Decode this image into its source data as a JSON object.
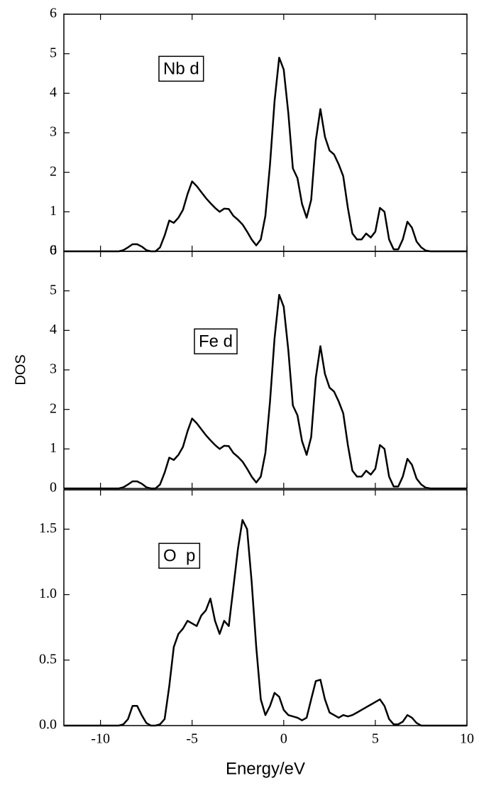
{
  "chart_data": [
    {
      "type": "line",
      "annotation": "Nb d",
      "xlim": [
        -12,
        10
      ],
      "ylim": [
        0,
        6
      ],
      "yticks": [
        0,
        1,
        2,
        3,
        4,
        5,
        6
      ],
      "series": [
        {
          "name": "Nb d",
          "color": "#000000",
          "x": [
            -12,
            -9,
            -8.75,
            -8.5,
            -8.25,
            -8,
            -7.75,
            -7.5,
            -7.25,
            -7,
            -6.75,
            -6.5,
            -6.25,
            -6,
            -5.75,
            -5.5,
            -5.25,
            -5,
            -4.75,
            -4.5,
            -4.25,
            -4,
            -3.75,
            -3.5,
            -3.25,
            -3,
            -2.75,
            -2.5,
            -2.25,
            -2,
            -1.75,
            -1.5,
            -1.25,
            -1,
            -0.75,
            -0.5,
            -0.25,
            0,
            0.25,
            0.5,
            0.75,
            1,
            1.25,
            1.5,
            1.75,
            2,
            2.25,
            2.5,
            2.75,
            3,
            3.25,
            3.5,
            3.75,
            4,
            4.25,
            4.5,
            4.75,
            5,
            5.25,
            5.5,
            5.75,
            6,
            6.25,
            6.5,
            6.75,
            7,
            7.25,
            7.5,
            7.75,
            8,
            10
          ],
          "values": [
            0,
            0,
            0.03,
            0.1,
            0.18,
            0.18,
            0.12,
            0.03,
            0,
            0,
            0.1,
            0.4,
            0.78,
            0.72,
            0.85,
            1.05,
            1.45,
            1.77,
            1.65,
            1.5,
            1.35,
            1.22,
            1.1,
            1.0,
            1.08,
            1.07,
            0.9,
            0.8,
            0.68,
            0.5,
            0.3,
            0.15,
            0.3,
            0.9,
            2.2,
            3.8,
            4.9,
            4.6,
            3.5,
            2.1,
            1.85,
            1.2,
            0.85,
            1.3,
            2.8,
            3.6,
            2.9,
            2.55,
            2.45,
            2.2,
            1.9,
            1.1,
            0.45,
            0.3,
            0.3,
            0.45,
            0.35,
            0.5,
            1.1,
            1.0,
            0.3,
            0.05,
            0.05,
            0.3,
            0.75,
            0.6,
            0.25,
            0.1,
            0.02,
            0,
            0
          ]
        }
      ]
    },
    {
      "type": "line",
      "annotation": "Fe d",
      "ylabel": "DOS",
      "xlim": [
        -12,
        10
      ],
      "ylim": [
        0,
        6
      ],
      "yticks": [
        0,
        1,
        2,
        3,
        4,
        5,
        6
      ],
      "series": [
        {
          "name": "Fe d",
          "color": "#000000",
          "x": [
            -12,
            -9,
            -8.75,
            -8.5,
            -8.25,
            -8,
            -7.75,
            -7.5,
            -7.25,
            -7,
            -6.75,
            -6.5,
            -6.25,
            -6,
            -5.75,
            -5.5,
            -5.25,
            -5,
            -4.75,
            -4.5,
            -4.25,
            -4,
            -3.75,
            -3.5,
            -3.25,
            -3,
            -2.75,
            -2.5,
            -2.25,
            -2,
            -1.75,
            -1.5,
            -1.25,
            -1,
            -0.75,
            -0.5,
            -0.25,
            0,
            0.25,
            0.5,
            0.75,
            1,
            1.25,
            1.5,
            1.75,
            2,
            2.25,
            2.5,
            2.75,
            3,
            3.25,
            3.5,
            3.75,
            4,
            4.25,
            4.5,
            4.75,
            5,
            5.25,
            5.5,
            5.75,
            6,
            6.25,
            6.5,
            6.75,
            7,
            7.25,
            7.5,
            7.75,
            8,
            10
          ],
          "values": [
            0,
            0,
            0.03,
            0.1,
            0.18,
            0.18,
            0.12,
            0.03,
            0,
            0,
            0.1,
            0.4,
            0.78,
            0.72,
            0.85,
            1.05,
            1.45,
            1.77,
            1.65,
            1.5,
            1.35,
            1.22,
            1.1,
            1.0,
            1.08,
            1.07,
            0.9,
            0.8,
            0.68,
            0.5,
            0.3,
            0.15,
            0.3,
            0.9,
            2.2,
            3.8,
            4.9,
            4.6,
            3.5,
            2.1,
            1.85,
            1.2,
            0.85,
            1.3,
            2.8,
            3.6,
            2.9,
            2.55,
            2.45,
            2.2,
            1.9,
            1.1,
            0.45,
            0.3,
            0.3,
            0.45,
            0.35,
            0.5,
            1.1,
            1.0,
            0.3,
            0.05,
            0.05,
            0.3,
            0.75,
            0.6,
            0.25,
            0.1,
            0.02,
            0,
            0
          ]
        }
      ]
    },
    {
      "type": "line",
      "annotation": "O  p",
      "xlabel": "Energy/eV",
      "xlim": [
        -12,
        10
      ],
      "ylim": [
        0,
        1.8
      ],
      "xticks": [
        -10,
        -5,
        0,
        5,
        10
      ],
      "yticks": [
        {
          "value": 0,
          "label": "0.0"
        },
        {
          "value": 0.5,
          "label": "0.5"
        },
        {
          "value": 1,
          "label": "1.0"
        },
        {
          "value": 1.5,
          "label": "1.5"
        }
      ],
      "series": [
        {
          "name": "O p",
          "color": "#000000",
          "x": [
            -12,
            -9,
            -8.75,
            -8.5,
            -8.25,
            -8,
            -7.75,
            -7.5,
            -7.25,
            -7,
            -6.75,
            -6.5,
            -6.25,
            -6,
            -5.75,
            -5.5,
            -5.25,
            -5,
            -4.75,
            -4.5,
            -4.25,
            -4,
            -3.75,
            -3.5,
            -3.25,
            -3,
            -2.75,
            -2.5,
            -2.25,
            -2,
            -1.75,
            -1.5,
            -1.25,
            -1,
            -0.75,
            -0.5,
            -0.25,
            0,
            0.25,
            0.5,
            0.75,
            1,
            1.25,
            1.5,
            1.75,
            2,
            2.25,
            2.5,
            2.75,
            3,
            3.25,
            3.5,
            3.75,
            4,
            4.25,
            4.5,
            4.75,
            5,
            5.25,
            5.5,
            5.75,
            6,
            6.25,
            6.5,
            6.75,
            7,
            7.25,
            7.5,
            7.75,
            8,
            10
          ],
          "values": [
            0,
            0,
            0.01,
            0.05,
            0.15,
            0.15,
            0.08,
            0.02,
            0,
            0,
            0.01,
            0.05,
            0.3,
            0.6,
            0.7,
            0.74,
            0.8,
            0.78,
            0.76,
            0.84,
            0.88,
            0.97,
            0.8,
            0.7,
            0.8,
            0.76,
            1.05,
            1.35,
            1.57,
            1.5,
            1.1,
            0.6,
            0.2,
            0.08,
            0.15,
            0.25,
            0.22,
            0.12,
            0.08,
            0.07,
            0.06,
            0.04,
            0.06,
            0.2,
            0.34,
            0.35,
            0.2,
            0.1,
            0.08,
            0.06,
            0.08,
            0.07,
            0.08,
            0.1,
            0.12,
            0.14,
            0.16,
            0.18,
            0.2,
            0.15,
            0.05,
            0.01,
            0.01,
            0.03,
            0.08,
            0.06,
            0.02,
            0,
            0,
            0,
            0
          ]
        }
      ]
    }
  ]
}
